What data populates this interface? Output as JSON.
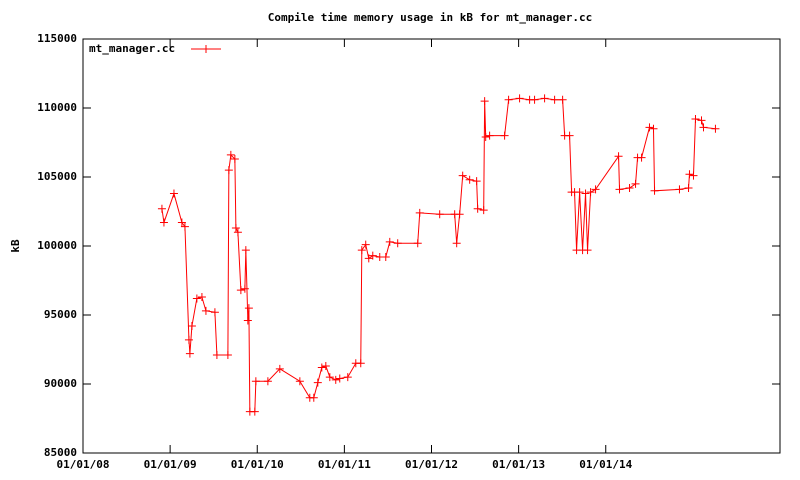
{
  "chart_data": {
    "type": "line",
    "title": "Compile time memory usage in kB for mt_manager.cc",
    "ylabel": "kB",
    "xlim": [
      2008,
      2016
    ],
    "xticks": [
      {
        "value": 2008,
        "label": "01/01/08"
      },
      {
        "value": 2009,
        "label": "01/01/09"
      },
      {
        "value": 2010,
        "label": "01/01/10"
      },
      {
        "value": 2011,
        "label": "01/01/11"
      },
      {
        "value": 2012,
        "label": "01/01/12"
      },
      {
        "value": 2013,
        "label": "01/01/13"
      },
      {
        "value": 2014,
        "label": "01/01/14"
      }
    ],
    "ylim": [
      85000,
      115000
    ],
    "yticks": [
      85000,
      90000,
      95000,
      100000,
      105000,
      110000,
      115000
    ],
    "legend": "top-left",
    "grid": false,
    "x": [
      2008.906,
      2008.929,
      2009.044,
      2009.135,
      2009.17,
      2009.216,
      2009.227,
      2009.25,
      2009.307,
      2009.365,
      2009.411,
      2009.514,
      2009.537,
      2009.663,
      2009.674,
      2009.697,
      2009.743,
      2009.755,
      2009.778,
      2009.812,
      2009.858,
      2009.869,
      2009.892,
      2009.904,
      2009.915,
      2009.972,
      2009.984,
      2010.122,
      2010.259,
      2010.489,
      2010.603,
      2010.649,
      2010.695,
      2010.741,
      2010.787,
      2010.833,
      2010.901,
      2010.947,
      2011.039,
      2011.131,
      2011.188,
      2011.2,
      2011.245,
      2011.28,
      2011.326,
      2011.406,
      2011.475,
      2011.521,
      2011.612,
      2011.842,
      2011.865,
      2012.094,
      2012.266,
      2012.289,
      2012.323,
      2012.358,
      2012.438,
      2012.518,
      2012.53,
      2012.599,
      2012.61,
      2012.622,
      2012.667,
      2012.839,
      2012.885,
      2013.011,
      2013.126,
      2013.183,
      2013.298,
      2013.413,
      2013.505,
      2013.528,
      2013.585,
      2013.608,
      2013.642,
      2013.665,
      2013.7,
      2013.734,
      2013.768,
      2013.791,
      2013.826,
      2013.883,
      2014.147,
      2014.158,
      2014.273,
      2014.342,
      2014.365,
      2014.411,
      2014.502,
      2014.548,
      2014.56,
      2014.846,
      2014.95,
      2014.961,
      2015.007,
      2015.03,
      2015.099,
      2015.122,
      2015.259
    ],
    "series": [
      {
        "name": "mt_manager.cc",
        "color": "#ff0000",
        "values": [
          102700,
          101700,
          103800,
          101700,
          101400,
          93200,
          92200,
          94200,
          96200,
          96300,
          95300,
          95200,
          92100,
          92100,
          105500,
          106600,
          106300,
          101300,
          101000,
          96800,
          96900,
          99700,
          94600,
          95500,
          88000,
          88000,
          90200,
          90200,
          91100,
          90200,
          89000,
          89000,
          90100,
          91200,
          91300,
          90500,
          90300,
          90400,
          90500,
          91500,
          91500,
          99700,
          100100,
          99100,
          99300,
          99200,
          99200,
          100300,
          100200,
          100200,
          102400,
          102300,
          102300,
          100200,
          102300,
          105100,
          104800,
          104700,
          102700,
          102600,
          110500,
          107900,
          108000,
          108000,
          110600,
          110700,
          110600,
          110600,
          110700,
          110600,
          110600,
          108000,
          108000,
          103900,
          103900,
          99700,
          103900,
          99700,
          103800,
          99700,
          103900,
          104100,
          106500,
          104100,
          104200,
          104500,
          106400,
          106400,
          108600,
          108500,
          104000,
          104100,
          104200,
          105200,
          105100,
          109200,
          109100,
          108600,
          108500
        ]
      }
    ]
  }
}
